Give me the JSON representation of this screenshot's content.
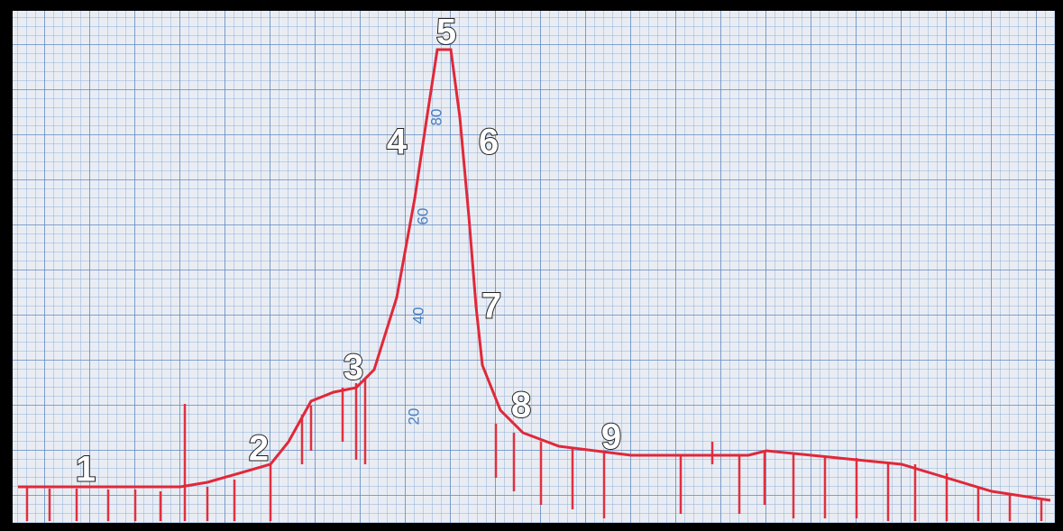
{
  "peak_labels": [
    "1",
    "2",
    "3",
    "4",
    "5",
    "6",
    "7",
    "8",
    "9"
  ],
  "scale_labels": [
    "80",
    "60",
    "40",
    "20"
  ]
}
